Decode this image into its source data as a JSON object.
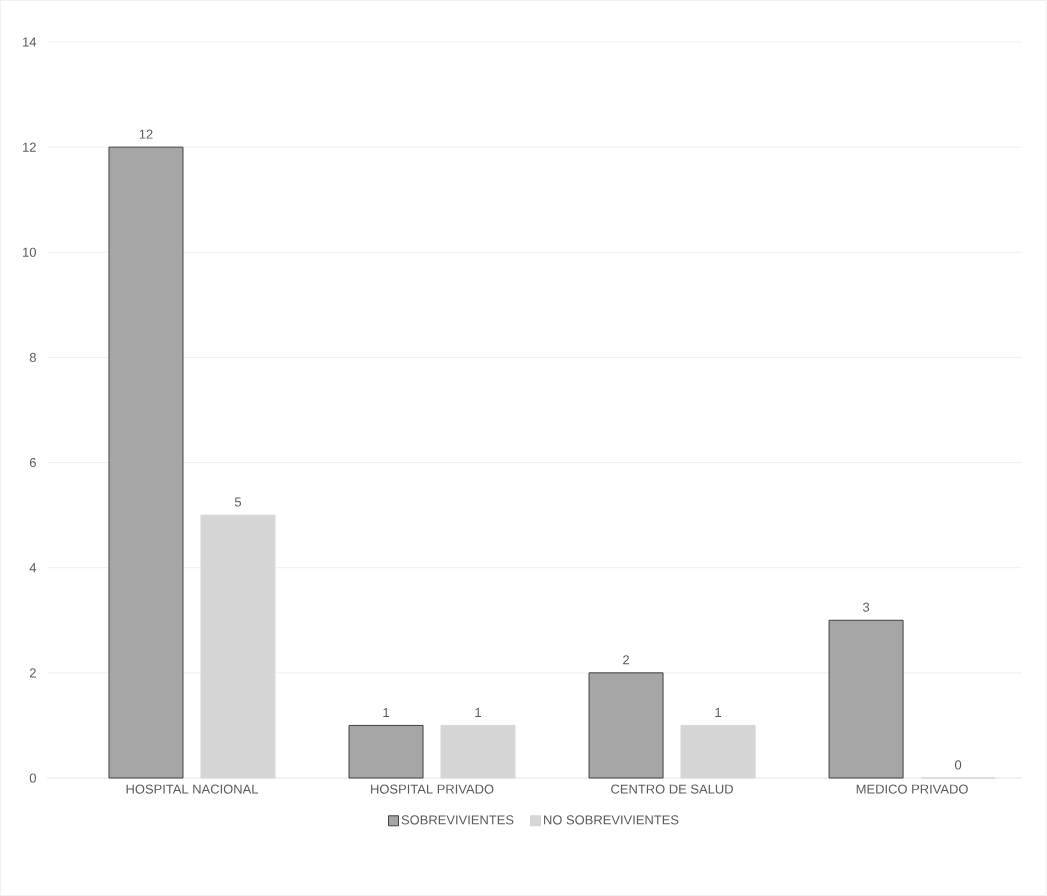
{
  "chart_data": {
    "type": "bar",
    "categories": [
      "HOSPITAL NACIONAL",
      "HOSPITAL PRIVADO",
      "CENTRO DE SALUD",
      "MEDICO PRIVADO"
    ],
    "series": [
      {
        "name": "SOBREVIVIENTES",
        "color": "#a6a6a6",
        "values": [
          12,
          1,
          2,
          3
        ]
      },
      {
        "name": "NO SOBREVIVIENTES",
        "color": "#d6d6d6",
        "values": [
          5,
          1,
          1,
          0
        ]
      }
    ],
    "ylim": [
      0,
      14
    ],
    "yticks": [
      0,
      2,
      4,
      6,
      8,
      10,
      12,
      14
    ],
    "grid": "y",
    "legend": "bottom",
    "data_labels": true
  }
}
